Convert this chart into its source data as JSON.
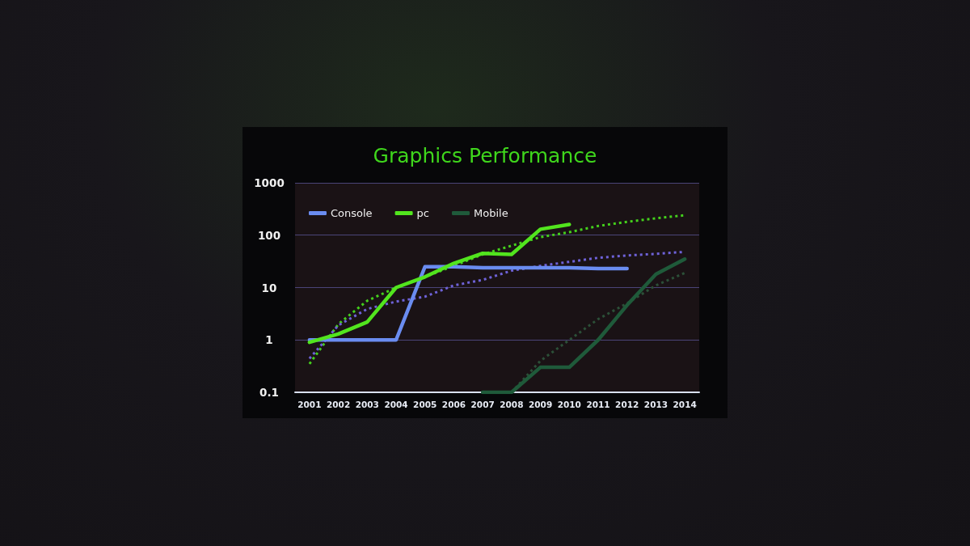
{
  "chart_data": {
    "type": "line",
    "title": "Graphics Performance",
    "categories": [
      "2001",
      "2002",
      "2003",
      "2004",
      "2005",
      "2006",
      "2007",
      "2008",
      "2009",
      "2010",
      "2011",
      "2012",
      "2013",
      "2014"
    ],
    "series": [
      {
        "name": "Console",
        "color": "#6a8cf0",
        "values": [
          1,
          1,
          1,
          1,
          25,
          25,
          24,
          24,
          24,
          24,
          23,
          23,
          null,
          null
        ]
      },
      {
        "name": "pc",
        "color": "#52e51e",
        "values": [
          0.9,
          1.3,
          2.2,
          10,
          16,
          29,
          45,
          43,
          130,
          160,
          null,
          null,
          null,
          null
        ]
      },
      {
        "name": "Mobile",
        "color": "#1f5a3a",
        "values": [
          null,
          null,
          null,
          null,
          null,
          null,
          0.1,
          0.1,
          0.3,
          0.3,
          1,
          4.6,
          18,
          35
        ]
      },
      {
        "color": "#44d01c",
        "line_style": "dotted",
        "values": [
          0.35,
          2,
          5.6,
          10,
          16,
          26,
          43,
          63,
          92,
          114,
          150,
          180,
          210,
          240
        ]
      },
      {
        "color": "#6e62d8",
        "line_style": "dotted",
        "values": [
          0.44,
          1.9,
          3.9,
          5.4,
          6.7,
          11,
          14,
          21,
          26,
          31,
          37,
          41,
          44,
          48
        ]
      },
      {
        "color": "#2c5038",
        "line_style": "dotted",
        "values": [
          null,
          null,
          null,
          null,
          null,
          null,
          null,
          0.1,
          0.4,
          1,
          2.5,
          5,
          11,
          19
        ]
      }
    ],
    "log": true,
    "ylim": [
      0.1,
      1000
    ],
    "yticks": [
      0.1,
      1,
      10,
      100,
      1000
    ],
    "grid": "y",
    "legend": "top left",
    "marker": "none",
    "line_style": "solid"
  }
}
